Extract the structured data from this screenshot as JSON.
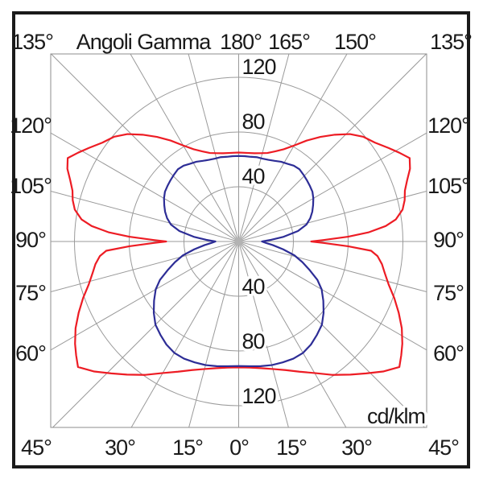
{
  "title": "Angoli Gamma",
  "unit_label": "cd/klm",
  "colors": {
    "red_series": "#ed1c24",
    "blue_series": "#2d2d96",
    "grid": "#9a9a9a",
    "plot_border": "#8c8c8c",
    "frame": "#1a1a1a",
    "text": "#1a1a1a",
    "center_dot": "#b3b3b3",
    "background": "#ffffff"
  },
  "labels": {
    "top": [
      "135°",
      "Angoli Gamma",
      "180°",
      "165°",
      "150°",
      "135°"
    ],
    "left": [
      "120°",
      "105°",
      "90°",
      "75°",
      "60°"
    ],
    "right": [
      "120°",
      "105°",
      "90°",
      "75°",
      "60°"
    ],
    "bottom": [
      "45°",
      "30°",
      "15°",
      "0°",
      "15°",
      "30°",
      "45°"
    ],
    "radial_above": [
      "120",
      "80",
      "40"
    ],
    "radial_below": [
      "40",
      "80",
      "120"
    ]
  },
  "chart_data": {
    "type": "line",
    "subtype": "polar-intensity-distribution",
    "title": "Angoli Gamma",
    "units": "cd/klm",
    "angle_unit": "gamma degrees, 0 = nadir (bottom), 180 = zenith (top)",
    "angle_grid_step_deg": 15,
    "radial_ticks": [
      40,
      80,
      120
    ],
    "radial_axis_max": 120,
    "grid": "on",
    "legend": "none",
    "symmetry": "both curves mirrored about the vertical 0-180 axis",
    "series": [
      {
        "name": "red",
        "color": "#ed1c24",
        "points_gamma_value": [
          [
            0,
            92
          ],
          [
            5,
            92.5
          ],
          [
            10,
            94
          ],
          [
            15,
            96.5
          ],
          [
            20,
            100
          ],
          [
            25,
            105
          ],
          [
            30,
            111
          ],
          [
            35,
            119
          ],
          [
            40,
            127
          ],
          [
            44,
            134
          ],
          [
            48,
            142
          ],
          [
            52,
            149
          ],
          [
            55,
            145
          ],
          [
            58,
            141
          ],
          [
            62,
            135
          ],
          [
            66,
            128
          ],
          [
            70,
            121
          ],
          [
            74,
            114
          ],
          [
            78,
            109
          ],
          [
            81,
            106
          ],
          [
            84,
            102
          ],
          [
            86,
            97
          ],
          [
            87.5,
            80
          ],
          [
            89,
            62
          ],
          [
            90,
            53
          ],
          [
            91,
            62
          ],
          [
            92.5,
            80
          ],
          [
            94,
            95
          ],
          [
            96,
            108
          ],
          [
            98,
            116
          ],
          [
            101,
            122
          ],
          [
            104,
            125
          ],
          [
            107,
            127
          ],
          [
            110,
            131
          ],
          [
            113,
            136
          ],
          [
            116,
            139
          ],
          [
            119,
            134
          ],
          [
            122,
            129
          ],
          [
            126,
            123
          ],
          [
            130,
            119
          ],
          [
            134,
            113
          ],
          [
            138,
            105
          ],
          [
            142,
            97
          ],
          [
            146,
            89
          ],
          [
            150,
            81
          ],
          [
            154,
            75
          ],
          [
            158,
            71
          ],
          [
            162,
            68
          ],
          [
            166,
            66.5
          ],
          [
            170,
            65.5
          ],
          [
            175,
            65
          ],
          [
            180,
            65
          ]
        ]
      },
      {
        "name": "blue",
        "color": "#2d2d96",
        "points_gamma_value": [
          [
            0,
            91
          ],
          [
            5,
            91.5
          ],
          [
            10,
            92.5
          ],
          [
            15,
            93.5
          ],
          [
            20,
            94
          ],
          [
            25,
            94.5
          ],
          [
            30,
            94
          ],
          [
            35,
            92
          ],
          [
            40,
            89
          ],
          [
            45,
            86
          ],
          [
            50,
            81
          ],
          [
            55,
            75.5
          ],
          [
            60,
            70
          ],
          [
            64,
            64
          ],
          [
            68,
            56
          ],
          [
            72,
            49
          ],
          [
            76,
            42
          ],
          [
            80,
            33
          ],
          [
            84,
            25
          ],
          [
            87,
            20
          ],
          [
            90,
            17
          ],
          [
            93,
            24
          ],
          [
            96,
            33
          ],
          [
            100,
            44
          ],
          [
            104,
            51
          ],
          [
            108,
            55
          ],
          [
            112,
            58
          ],
          [
            116,
            60.5
          ],
          [
            120,
            63
          ],
          [
            124,
            65
          ],
          [
            128,
            66
          ],
          [
            132,
            67
          ],
          [
            136,
            68
          ],
          [
            140,
            69
          ],
          [
            144,
            68.5
          ],
          [
            148,
            67
          ],
          [
            152,
            66
          ],
          [
            156,
            64.5
          ],
          [
            160,
            63.5
          ],
          [
            164,
            63
          ],
          [
            168,
            63
          ],
          [
            172,
            62.5
          ],
          [
            176,
            62.5
          ],
          [
            180,
            62.5
          ]
        ]
      }
    ]
  }
}
